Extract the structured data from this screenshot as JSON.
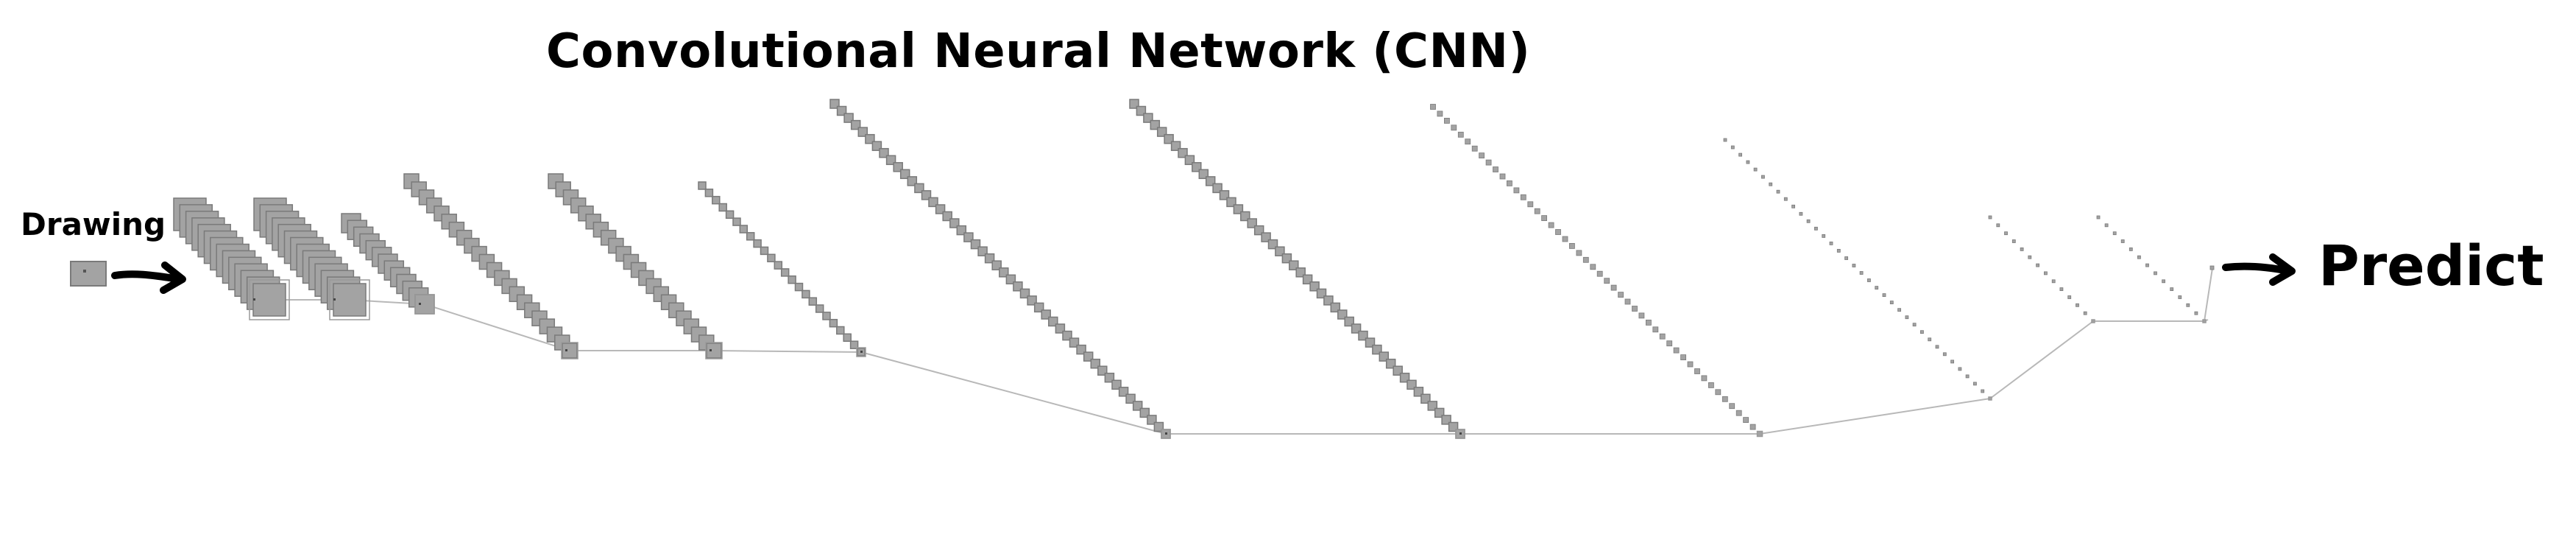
{
  "title": "Convolutional Neural Network (CNN)",
  "input_label": "Drawing",
  "output_label": "Predict",
  "colors": {
    "block_fill": "#a3a3a3",
    "block_edge": "#7a7a7a",
    "frame": "#9a9a9a",
    "connector": "#b8b8b8",
    "arrow": "#000000",
    "text": "#000000"
  },
  "icons": [
    "arrow-right-icon"
  ]
}
